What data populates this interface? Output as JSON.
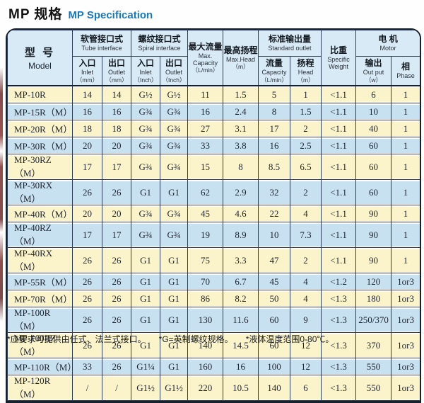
{
  "title": {
    "cn": "MP 规格",
    "en": "MP Specification"
  },
  "header": {
    "model": {
      "cn": "型 号",
      "en": "Model"
    },
    "tube": {
      "cn": "软管接口式",
      "en": "Tube interface"
    },
    "spiral": {
      "cn": "螺纹接口式",
      "en": "Spiral interface"
    },
    "max_capacity": {
      "cn": "最大流量",
      "en": "Max.",
      "en2": "Capacity",
      "unit": "（L/min）"
    },
    "max_head": {
      "cn": "最高扬程",
      "en": "Max.Head",
      "unit": "（m）"
    },
    "standard_outlet": {
      "cn": "标准输出量",
      "en": "Standard outlet"
    },
    "specific_weight": {
      "cn": "比重",
      "en": "Specific",
      "en2": "Weight"
    },
    "motor": {
      "cn": "电 机",
      "en": "Motor"
    },
    "sub": {
      "inlet_mm": {
        "cn": "入口",
        "en": "Inlet",
        "unit": "（mm）"
      },
      "outlet_mm": {
        "cn": "出口",
        "en": "Outlet",
        "unit": "（mm）"
      },
      "inlet_inch": {
        "cn": "入口",
        "en": "Inlet",
        "unit": "（Inch）"
      },
      "outlet_inch": {
        "cn": "出口",
        "en": "Outlet",
        "unit": "（Inch）"
      },
      "std_capacity": {
        "cn": "流量",
        "en": "Capacity",
        "unit": "（L/min）"
      },
      "std_head": {
        "cn": "扬程",
        "en": "Head",
        "unit": "（m）"
      },
      "output": {
        "cn": "输出",
        "en": "Out put",
        "unit": "（w）"
      },
      "phase": {
        "cn": "相",
        "en": "Phase"
      }
    }
  },
  "table": {
    "rows": [
      {
        "model": "MP-10R",
        "values": [
          "14",
          "14",
          "G½",
          "G½",
          "11",
          "1.5",
          "5",
          "1",
          "<1.1",
          "6",
          "1"
        ]
      },
      {
        "model": "MP-15R（M）",
        "values": [
          "16",
          "16",
          "G¾",
          "G¾",
          "16",
          "2.4",
          "8",
          "1.5",
          "<1.1",
          "10",
          "1"
        ]
      },
      {
        "model": "MP-20R（M）",
        "values": [
          "18",
          "18",
          "G¾",
          "G¾",
          "27",
          "3.1",
          "17",
          "2",
          "<1.1",
          "40",
          "1"
        ]
      },
      {
        "model": "MP-30R（M）",
        "values": [
          "20",
          "20",
          "G¾",
          "G¾",
          "33",
          "3.8",
          "16",
          "2.5",
          "<1.1",
          "60",
          "1"
        ]
      },
      {
        "model": "MP-30RZ（M）",
        "values": [
          "17",
          "17",
          "G¾",
          "G¾",
          "15",
          "8",
          "8.5",
          "6.5",
          "<1.1",
          "60",
          "1"
        ]
      },
      {
        "model": "MP-30RX（M）",
        "values": [
          "26",
          "26",
          "G1",
          "G1",
          "62",
          "2.9",
          "32",
          "2",
          "<1.1",
          "60",
          "1"
        ]
      },
      {
        "model": "MP-40R（M）",
        "values": [
          "20",
          "20",
          "G¾",
          "G¾",
          "45",
          "4.6",
          "22",
          "4",
          "<1.1",
          "90",
          "1"
        ]
      },
      {
        "model": "MP-40RZ（M）",
        "values": [
          "17",
          "17",
          "G¾",
          "G¾",
          "19",
          "8.9",
          "10",
          "7.3",
          "<1.1",
          "90",
          "1"
        ]
      },
      {
        "model": "MP-40RX（M）",
        "values": [
          "26",
          "26",
          "G1",
          "G1",
          "75",
          "3.3",
          "47",
          "2",
          "<1.1",
          "90",
          "1"
        ]
      },
      {
        "model": "MP-55R（M）",
        "values": [
          "26",
          "26",
          "G1",
          "G1",
          "70",
          "6.7",
          "45",
          "4",
          "<1.2",
          "120",
          "1or3"
        ]
      },
      {
        "model": "MP-70R（M）",
        "values": [
          "26",
          "26",
          "G1",
          "G1",
          "86",
          "8.2",
          "50",
          "4",
          "<1.3",
          "180",
          "1or3"
        ]
      },
      {
        "model": "MP-100R（M）",
        "values": [
          "26",
          "26",
          "G1",
          "G1",
          "130",
          "11.6",
          "60",
          "9",
          "<1.3",
          "250/370",
          "1or3"
        ]
      },
      {
        "model": "MP-100RZ（M）",
        "values": [
          "26",
          "26",
          "G1",
          "G1",
          "140",
          "14.5",
          "60",
          "12",
          "<1.3",
          "370",
          "1or3"
        ]
      },
      {
        "model": "MP-110R（M）",
        "values": [
          "33",
          "26",
          "G1¼",
          "G1",
          "160",
          "16",
          "100",
          "12",
          "<1.3",
          "550",
          "1or3"
        ]
      },
      {
        "model": "MP-120R（M）",
        "values": [
          "/",
          "/",
          "G1½",
          "G1½",
          "220",
          "10.5",
          "140",
          "6",
          "<1.3",
          "550",
          "1or3"
        ]
      }
    ]
  },
  "footnotes": [
    "*应要求可提供由任式、法兰式接口。",
    "*G=英制螺纹规格。",
    "*液体温度范围0-80℃。"
  ],
  "colors": {
    "title_accent": "#1778c0",
    "row_yellow": "#fbf4cb",
    "row_blue": "#c8e1f1",
    "header_bg": "#d8eaf6",
    "border": "#2c3e57"
  }
}
